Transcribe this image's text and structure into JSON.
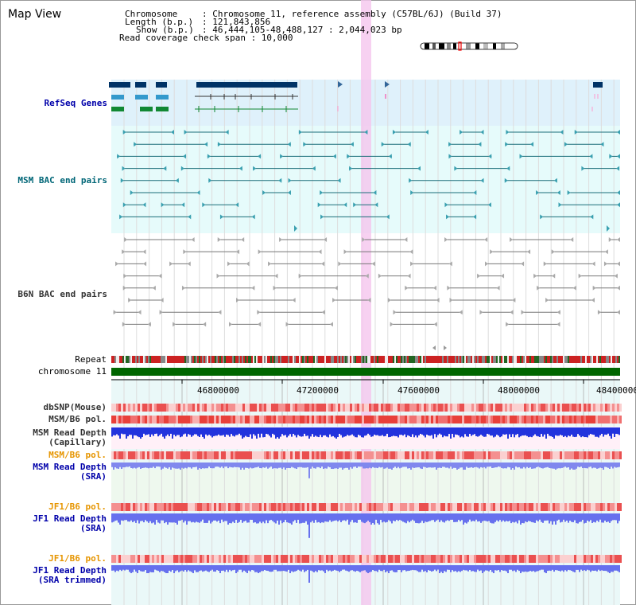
{
  "window": {
    "title": "Map View"
  },
  "info": {
    "chromosome_key": "Chromosome",
    "chromosome_val": ": Chromosome 11, reference assembly (C57BL/6J) (Build 37)",
    "length_key": "Length (b.p.)",
    "length_val": ": 121,843,856",
    "show_key": "Show (b.p.)",
    "show_val": ": 46,444,105-48,488,127 : 2,044,023 bp",
    "coverage_line": "Read coverage check span : 10,000"
  },
  "tracks": {
    "refseq": "RefSeq Genes",
    "msm_bac": "MSM BAC end pairs",
    "b6n_bac": "B6N BAC end pairs",
    "repeat": "Repeat",
    "chromosome": "chromosome 11",
    "dbsnp": "dbSNP(Mouse)",
    "msm_b6_pol": "MSM/B6 pol.",
    "msm_read_depth_cap_1": "MSM Read Depth",
    "msm_read_depth_cap_2": "(Capillary)",
    "msm_b6_pol_2": "MSM/B6 pol.",
    "msm_read_depth_sra_1": "MSM Read Depth",
    "msm_read_depth_sra_2": "(SRA)",
    "jf1_b6_pol": "JF1/B6 pol.",
    "jf1_read_depth_sra_1": "JF1 Read Depth",
    "jf1_read_depth_sra_2": "(SRA)",
    "jf1_b6_pol_2": "JF1/B6 pol.",
    "jf1_read_depth_trim_1": "JF1 Read Depth",
    "jf1_read_depth_trim_2": "(SRA trimmed)"
  },
  "axis": {
    "ticks": [
      "46800000",
      "47200000",
      "47600000",
      "48000000",
      "48400000"
    ]
  },
  "colors": {
    "refseq_bg": "#dff1fb",
    "msm_bg": "#e6fbfb",
    "b6n_bg": "#ffffff",
    "refseq_label": "#0000aa",
    "msm_label": "#006677",
    "b6n_label": "#333333",
    "orange_label": "#e69500",
    "blue_label": "#0000aa",
    "chromosome_bar": "#006600",
    "highlight": "#f5c6ee"
  }
}
